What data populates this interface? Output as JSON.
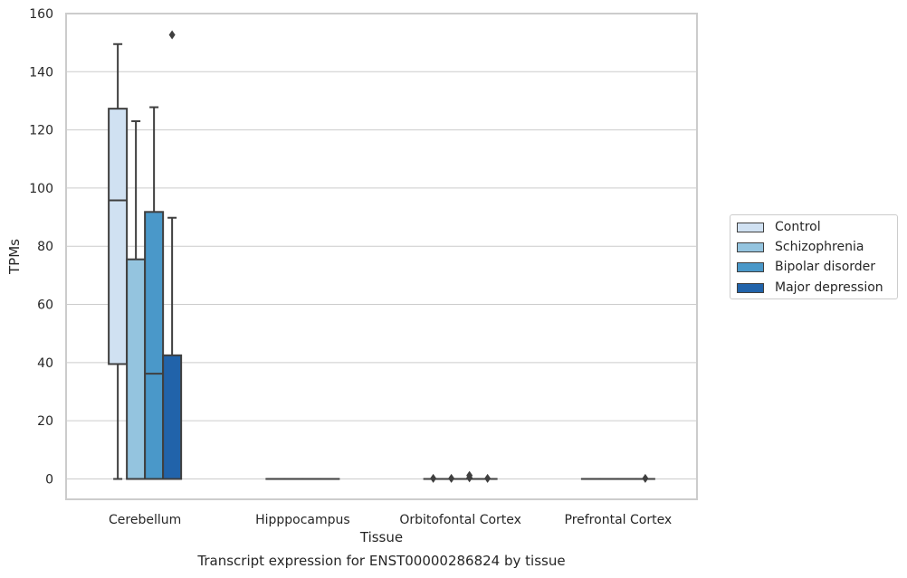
{
  "chart_data": {
    "type": "boxplot",
    "ylabel": "TPMs",
    "xlabel": "Tissue",
    "caption": "Transcript expression for ENST00000286824 by tissue",
    "ylim": [
      -7,
      160
    ],
    "yticks": [
      0,
      20,
      40,
      60,
      80,
      100,
      120,
      140,
      160
    ],
    "grid": "horizontal",
    "legend_position": "right",
    "categories": [
      "Cerebellum",
      "Hipppocampus",
      "Orbitofontal Cortex",
      "Prefrontal Cortex"
    ],
    "series": [
      {
        "name": "Control",
        "color": "#d0e1f2",
        "boxes": [
          {
            "q1": 39.5,
            "median": 95.8,
            "q3": 127.3,
            "low": 0,
            "high": 149.5,
            "outliers": []
          },
          {
            "q1": 0,
            "median": 0,
            "q3": 0,
            "low": 0,
            "high": 0,
            "outliers": []
          },
          {
            "q1": 0,
            "median": 0,
            "q3": 0,
            "low": 0,
            "high": 0,
            "outliers": [
              0.2
            ]
          },
          {
            "q1": 0,
            "median": 0,
            "q3": 0,
            "low": 0,
            "high": 0,
            "outliers": []
          }
        ]
      },
      {
        "name": "Schizophrenia",
        "color": "#94c4df",
        "boxes": [
          {
            "q1": 0,
            "median": 0,
            "q3": 75.5,
            "low": 0,
            "high": 123,
            "outliers": []
          },
          {
            "q1": 0,
            "median": 0,
            "q3": 0,
            "low": 0,
            "high": 0,
            "outliers": []
          },
          {
            "q1": 0,
            "median": 0,
            "q3": 0,
            "low": 0,
            "high": 0,
            "outliers": [
              0.2
            ]
          },
          {
            "q1": 0,
            "median": 0,
            "q3": 0,
            "low": 0,
            "high": 0,
            "outliers": []
          }
        ]
      },
      {
        "name": "Bipolar disorder",
        "color": "#4a98c9",
        "boxes": [
          {
            "q1": 0,
            "median": 36.2,
            "q3": 91.8,
            "low": 0,
            "high": 127.8,
            "outliers": []
          },
          {
            "q1": 0,
            "median": 0,
            "q3": 0,
            "low": 0,
            "high": 0,
            "outliers": []
          },
          {
            "q1": 0,
            "median": 0,
            "q3": 0,
            "low": 0,
            "high": 0,
            "outliers": [
              0.4,
              1.2
            ]
          },
          {
            "q1": 0,
            "median": 0,
            "q3": 0,
            "low": 0,
            "high": 0,
            "outliers": []
          }
        ]
      },
      {
        "name": "Major depression",
        "color": "#2163aa",
        "boxes": [
          {
            "q1": 0,
            "median": 0,
            "q3": 42.5,
            "low": 0,
            "high": 89.8,
            "outliers": [
              152.7
            ]
          },
          {
            "q1": 0,
            "median": 0,
            "q3": 0,
            "low": 0,
            "high": 0,
            "outliers": []
          },
          {
            "q1": 0,
            "median": 0,
            "q3": 0,
            "low": 0,
            "high": 0,
            "outliers": [
              0.2
            ]
          },
          {
            "q1": 0,
            "median": 0,
            "q3": 0,
            "low": 0,
            "high": 0,
            "outliers": [
              0.2
            ]
          }
        ]
      }
    ]
  }
}
